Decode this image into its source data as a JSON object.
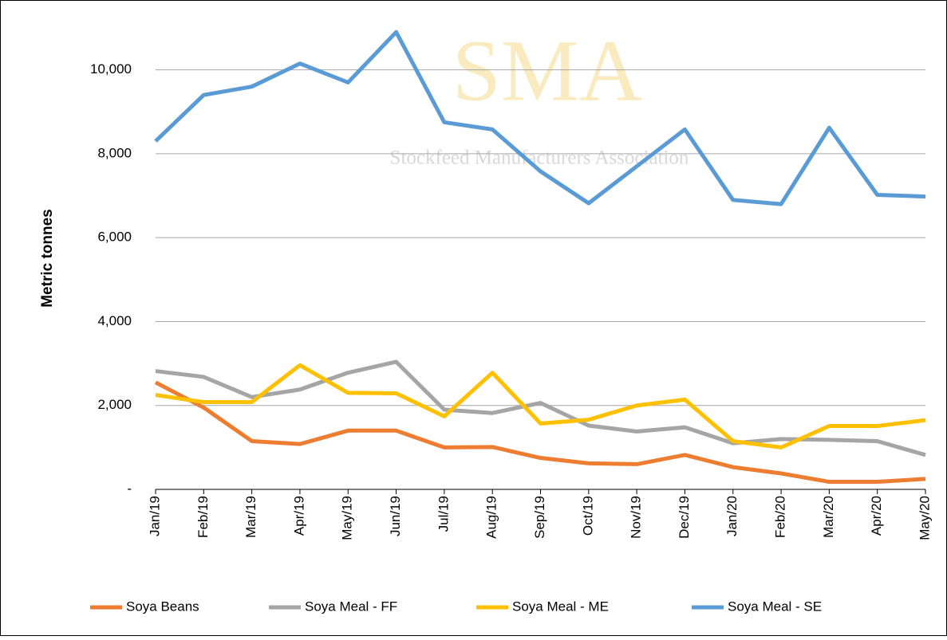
{
  "chart_data": {
    "type": "line",
    "watermark": {
      "title": "SMA",
      "subtitle": "Stockfeed Manufacturers Association"
    },
    "y_label": "Metric tonnes",
    "categories": [
      "Jan/19",
      "Feb/19",
      "Mar/19",
      "Apr/19",
      "May/19",
      "Jun/19",
      "Jul/19",
      "Aug/19",
      "Sep/19",
      "Oct/19",
      "Nov/19",
      "Dec/19",
      "Jan/20",
      "Feb/20",
      "Mar/20",
      "Apr/20",
      "May/20"
    ],
    "series": [
      {
        "name": "Soya Beans",
        "color": "#ed7d31",
        "values": [
          2550,
          1950,
          1150,
          1080,
          1400,
          1400,
          1000,
          1010,
          750,
          620,
          600,
          820,
          530,
          380,
          180,
          180,
          250
        ]
      },
      {
        "name": "Soya Meal - FF",
        "color": "#a5a5a5",
        "values": [
          2820,
          2680,
          2200,
          2380,
          2780,
          3040,
          1900,
          1820,
          2060,
          1520,
          1380,
          1480,
          1100,
          1200,
          1180,
          1150,
          820
        ]
      },
      {
        "name": "Soya Meal - ME",
        "color": "#ffc000",
        "values": [
          2250,
          2080,
          2080,
          2960,
          2300,
          2290,
          1740,
          2780,
          1570,
          1660,
          2000,
          2140,
          1150,
          1000,
          1510,
          1510,
          1650
        ]
      },
      {
        "name": "Soya Meal - SE",
        "color": "#5b9bd5",
        "values": [
          8300,
          9400,
          9600,
          10150,
          9700,
          10900,
          8750,
          8580,
          7580,
          6820,
          7700,
          8580,
          6900,
          6800,
          8620,
          7020,
          6980
        ]
      }
    ],
    "ylim": [
      0,
      11000
    ],
    "yticks": [
      {
        "value": 0,
        "label": "-"
      },
      {
        "value": 2000,
        "label": "2,000"
      },
      {
        "value": 4000,
        "label": "4,000"
      },
      {
        "value": 6000,
        "label": "6,000"
      },
      {
        "value": 8000,
        "label": "8,000"
      },
      {
        "value": 10000,
        "label": "10,000"
      }
    ],
    "grid": true,
    "legend": "bottom"
  }
}
